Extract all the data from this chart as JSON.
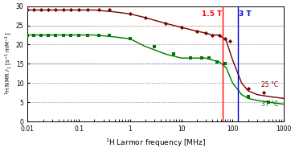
{
  "xlabel": "$^1$H Larmor frequency [MHz]",
  "ylabel": "$^1$H NMR $r_1$ [s$^{-1}$ mM$^{-1}$]",
  "xlim": [
    0.01,
    1000
  ],
  "ylim": [
    0,
    30
  ],
  "yticks": [
    0,
    5,
    10,
    15,
    20,
    25,
    30
  ],
  "background_color": "#ffffff",
  "vline_15T": 63.87,
  "vline_3T": 127.74,
  "vline_15T_color": "#ff0000",
  "vline_3T_color": "#0000cc",
  "label_15T": "1.5 T",
  "label_3T": "3 T",
  "label_25C": "25 °C",
  "label_37C": "37 °C",
  "color_25C": "#7b0000",
  "color_37C": "#007700",
  "dots_25C_x": [
    0.01,
    0.013,
    0.018,
    0.025,
    0.035,
    0.05,
    0.07,
    0.1,
    0.15,
    0.25,
    0.4,
    1.0,
    2.0,
    5.0,
    10.0,
    20.0,
    30.0,
    40.0,
    55.0,
    70.0,
    90.0,
    200.0,
    400.0
  ],
  "dots_25C_y": [
    29.0,
    29.0,
    29.0,
    29.0,
    29.0,
    29.0,
    29.0,
    29.0,
    29.0,
    29.0,
    29.0,
    28.0,
    27.0,
    25.5,
    24.5,
    23.5,
    23.0,
    22.5,
    22.5,
    21.5,
    21.0,
    8.5,
    7.5
  ],
  "curve_25C_x": [
    0.01,
    0.02,
    0.05,
    0.1,
    0.2,
    0.5,
    1.0,
    2.0,
    5.0,
    10.0,
    20.0,
    30.0,
    40.0,
    55.0,
    75.0,
    100.0,
    150.0,
    200.0,
    300.0,
    500.0,
    1000.0
  ],
  "curve_25C_y": [
    29.0,
    29.0,
    29.0,
    29.0,
    29.0,
    28.5,
    28.0,
    27.0,
    25.5,
    24.5,
    23.5,
    23.0,
    22.5,
    22.5,
    21.0,
    16.0,
    10.0,
    8.0,
    7.0,
    6.5,
    6.0
  ],
  "dots_37C_x": [
    0.01,
    0.013,
    0.018,
    0.025,
    0.035,
    0.05,
    0.07,
    0.1,
    0.15,
    0.25,
    0.4,
    1.0,
    3.0,
    7.0,
    15.0,
    25.0,
    35.0,
    50.0,
    70.0,
    200.0,
    500.0
  ],
  "dots_37C_y": [
    22.5,
    22.5,
    22.5,
    22.5,
    22.5,
    22.5,
    22.5,
    22.5,
    22.5,
    22.5,
    22.5,
    21.5,
    19.5,
    17.5,
    16.5,
    16.5,
    16.5,
    15.5,
    15.0,
    6.5,
    5.0
  ],
  "curve_37C_x": [
    0.01,
    0.02,
    0.05,
    0.1,
    0.2,
    0.5,
    1.0,
    2.0,
    5.0,
    10.0,
    20.0,
    30.0,
    40.0,
    55.0,
    75.0,
    100.0,
    150.0,
    200.0,
    300.0,
    500.0,
    1000.0
  ],
  "curve_37C_y": [
    22.5,
    22.5,
    22.5,
    22.5,
    22.5,
    22.0,
    21.5,
    19.5,
    17.5,
    16.5,
    16.5,
    16.5,
    16.0,
    15.5,
    14.0,
    10.0,
    7.0,
    6.0,
    5.5,
    5.0,
    4.5
  ],
  "hlines_dotted_black": [
    5,
    10,
    15,
    20,
    25
  ],
  "hline_25_red_dot": 25.0,
  "hline_15_blue_dot": 15.0
}
